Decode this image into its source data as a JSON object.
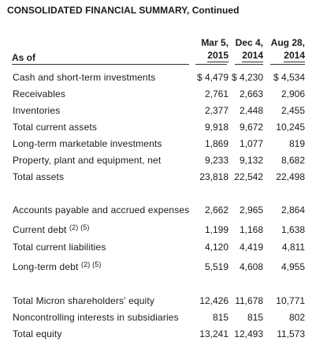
{
  "title": "CONSOLIDATED FINANCIAL SUMMARY, Continued",
  "as_of_label": "As of",
  "columns": [
    {
      "line1": "Mar 5,",
      "line2": "2015"
    },
    {
      "line1": "Dec 4,",
      "line2": "2014"
    },
    {
      "line1": "Aug 28,",
      "line2": "2014"
    }
  ],
  "rows": [
    {
      "label": "Cash and short-term investments",
      "sup": "",
      "values": [
        "$ 4,479",
        "$ 4,230",
        "$ 4,534"
      ]
    },
    {
      "label": "Receivables",
      "sup": "",
      "values": [
        "2,761",
        "2,663",
        "2,906"
      ]
    },
    {
      "label": "Inventories",
      "sup": "",
      "values": [
        "2,377",
        "2,448",
        "2,455"
      ]
    },
    {
      "label": "Total current assets",
      "sup": "",
      "values": [
        "9,918",
        "9,672",
        "10,245"
      ]
    },
    {
      "label": "Long-term marketable investments",
      "sup": "",
      "values": [
        "1,869",
        "1,077",
        "819"
      ]
    },
    {
      "label": "Property, plant and equipment, net",
      "sup": "",
      "values": [
        "9,233",
        "9,132",
        "8,682"
      ]
    },
    {
      "label": "Total assets",
      "sup": "",
      "values": [
        "23,818",
        "22,542",
        "22,498"
      ]
    },
    {
      "label": "Accounts payable and accrued expenses",
      "sup": "",
      "values": [
        "2,662",
        "2,965",
        "2,864"
      ]
    },
    {
      "label": "Current debt",
      "sup": "(2) (5)",
      "values": [
        "1,199",
        "1,168",
        "1,638"
      ]
    },
    {
      "label": "Total current liabilities",
      "sup": "",
      "values": [
        "4,120",
        "4,419",
        "4,811"
      ]
    },
    {
      "label": "Long-term debt",
      "sup": "(2) (5)",
      "values": [
        "5,519",
        "4,608",
        "4,955"
      ]
    },
    {
      "label": "Total Micron shareholders' equity",
      "sup": "",
      "values": [
        "12,426",
        "11,678",
        "10,771"
      ]
    },
    {
      "label": "Noncontrolling interests in subsidiaries",
      "sup": "",
      "values": [
        "815",
        "815",
        "802"
      ]
    },
    {
      "label": "Total equity",
      "sup": "",
      "values": [
        "13,241",
        "12,493",
        "11,573"
      ]
    }
  ]
}
